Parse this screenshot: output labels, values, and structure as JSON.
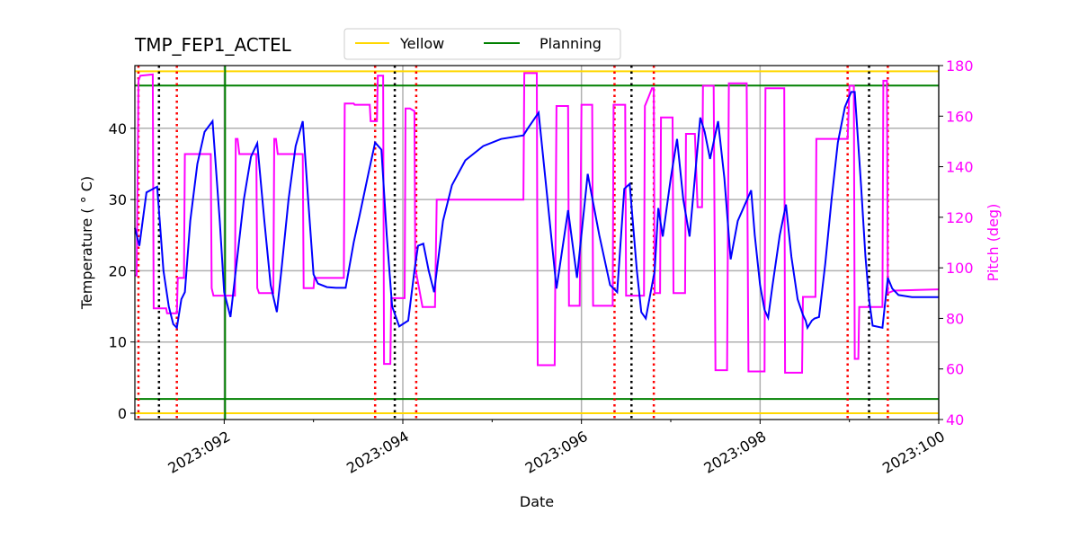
{
  "chart_data": {
    "type": "line",
    "title": "TMP_FEP1_ACTEL",
    "xlabel": "Date",
    "ylabel": "Temperature ($^\\circ$C)",
    "ylabel_display": "Temperature ($^\\circ$C)",
    "ylabel_text": "Temperature ( ° C)",
    "y2label": "Pitch (deg)",
    "xlim": [
      91.0,
      100.0
    ],
    "ylim": [
      -1,
      49
    ],
    "y2lim": [
      40,
      180
    ],
    "grid": true,
    "legend_position": "upper center (above axes)",
    "x_ticks": [
      {
        "day": 92,
        "label": "2023:092"
      },
      {
        "day": 94,
        "label": "2023:094"
      },
      {
        "day": 96,
        "label": "2023:096"
      },
      {
        "day": 98,
        "label": "2023:098"
      },
      {
        "day": 100,
        "label": "2023:100"
      }
    ],
    "y_ticks": [
      0,
      10,
      20,
      30,
      40
    ],
    "y2_ticks": [
      40,
      60,
      80,
      100,
      120,
      140,
      160,
      180
    ],
    "legend": [
      {
        "name": "Yellow",
        "color": "#ffd700"
      },
      {
        "name": "Planning",
        "color": "#008000"
      }
    ],
    "limit_lines": [
      {
        "name": "Yellow",
        "values": [
          0.0,
          48.0
        ],
        "color": "#ffd700"
      },
      {
        "name": "Planning",
        "values": [
          2.0,
          46.0
        ],
        "color": "#008000"
      }
    ],
    "vertical_lines": {
      "red_dotted": [
        91.04,
        91.47,
        93.69,
        94.15,
        96.37,
        96.81,
        98.98,
        99.43
      ],
      "black_dotted": [
        91.27,
        93.91,
        96.56,
        99.22
      ],
      "green_solid": [
        92.0
      ]
    },
    "series": [
      {
        "name": "TMP_FEP1_ACTEL",
        "axis": "left",
        "color": "#0000ff",
        "points": [
          [
            91.0,
            26.0
          ],
          [
            91.05,
            23.5
          ],
          [
            91.13,
            31.0
          ],
          [
            91.25,
            31.8
          ],
          [
            91.32,
            20.0
          ],
          [
            91.38,
            15.0
          ],
          [
            91.43,
            12.5
          ],
          [
            91.47,
            12.0
          ],
          [
            91.52,
            16.0
          ],
          [
            91.56,
            17.0
          ],
          [
            91.62,
            27.0
          ],
          [
            91.7,
            35.0
          ],
          [
            91.78,
            39.5
          ],
          [
            91.87,
            41.0
          ],
          [
            91.95,
            27.0
          ],
          [
            92.0,
            17.0
          ],
          [
            92.07,
            13.5
          ],
          [
            92.13,
            20.0
          ],
          [
            92.22,
            30.0
          ],
          [
            92.3,
            36.0
          ],
          [
            92.37,
            37.9
          ],
          [
            92.45,
            27.0
          ],
          [
            92.52,
            18.0
          ],
          [
            92.59,
            14.2
          ],
          [
            92.64,
            20.0
          ],
          [
            92.72,
            30.0
          ],
          [
            92.8,
            37.5
          ],
          [
            92.88,
            41.0
          ],
          [
            92.94,
            30.0
          ],
          [
            93.0,
            19.5
          ],
          [
            93.05,
            18.2
          ],
          [
            93.15,
            17.7
          ],
          [
            93.25,
            17.6
          ],
          [
            93.36,
            17.6
          ],
          [
            93.45,
            24.0
          ],
          [
            93.52,
            28.0
          ],
          [
            93.62,
            34.0
          ],
          [
            93.69,
            38.0
          ],
          [
            93.76,
            37.0
          ],
          [
            93.82,
            25.0
          ],
          [
            93.88,
            15.0
          ],
          [
            93.96,
            12.2
          ],
          [
            94.06,
            13.0
          ],
          [
            94.13,
            20.0
          ],
          [
            94.17,
            23.5
          ],
          [
            94.23,
            23.8
          ],
          [
            94.29,
            20.0
          ],
          [
            94.35,
            17.0
          ],
          [
            94.45,
            27.0
          ],
          [
            94.55,
            32.0
          ],
          [
            94.7,
            35.5
          ],
          [
            94.9,
            37.5
          ],
          [
            95.1,
            38.5
          ],
          [
            95.35,
            39.0
          ],
          [
            95.4,
            40.0
          ],
          [
            95.52,
            42.2
          ],
          [
            95.62,
            30.0
          ],
          [
            95.72,
            17.5
          ],
          [
            95.85,
            28.5
          ],
          [
            95.95,
            19.0
          ],
          [
            96.07,
            33.6
          ],
          [
            96.2,
            25.0
          ],
          [
            96.32,
            18.0
          ],
          [
            96.4,
            17.0
          ],
          [
            96.48,
            31.5
          ],
          [
            96.54,
            32.2
          ],
          [
            96.62,
            20.0
          ],
          [
            96.67,
            14.2
          ],
          [
            96.72,
            13.3
          ],
          [
            96.82,
            20.0
          ],
          [
            96.86,
            28.8
          ],
          [
            96.91,
            24.8
          ],
          [
            97.0,
            33.0
          ],
          [
            97.07,
            38.5
          ],
          [
            97.14,
            30.0
          ],
          [
            97.21,
            24.8
          ],
          [
            97.33,
            41.5
          ],
          [
            97.38,
            39.5
          ],
          [
            97.44,
            35.7
          ],
          [
            97.53,
            41.0
          ],
          [
            97.6,
            33.0
          ],
          [
            97.67,
            21.6
          ],
          [
            97.75,
            27.0
          ],
          [
            97.9,
            31.3
          ],
          [
            97.94,
            25.0
          ],
          [
            98.0,
            18.0
          ],
          [
            98.05,
            14.5
          ],
          [
            98.09,
            13.4
          ],
          [
            98.14,
            18.0
          ],
          [
            98.22,
            25.0
          ],
          [
            98.29,
            29.3
          ],
          [
            98.35,
            22.0
          ],
          [
            98.42,
            16.0
          ],
          [
            98.48,
            13.8
          ],
          [
            98.51,
            13.0
          ],
          [
            98.53,
            12.0
          ],
          [
            98.58,
            13.0
          ],
          [
            98.61,
            13.3
          ],
          [
            98.66,
            13.5
          ],
          [
            98.73,
            21.0
          ],
          [
            98.8,
            30.0
          ],
          [
            98.87,
            38.0
          ],
          [
            98.95,
            43.0
          ],
          [
            99.02,
            45.1
          ],
          [
            99.06,
            45.1
          ],
          [
            99.13,
            32.0
          ],
          [
            99.18,
            22.0
          ],
          [
            99.22,
            16.0
          ],
          [
            99.26,
            12.3
          ],
          [
            99.37,
            12.0
          ],
          [
            99.43,
            19.0
          ],
          [
            99.48,
            17.5
          ],
          [
            99.55,
            16.6
          ],
          [
            99.7,
            16.3
          ],
          [
            100.0,
            16.3
          ]
        ]
      },
      {
        "name": "Pitch",
        "axis": "right",
        "color": "#ff00ff",
        "points": [
          [
            91.0,
            97.0
          ],
          [
            91.02,
            97.0
          ],
          [
            91.04,
            174.0
          ],
          [
            91.06,
            176.0
          ],
          [
            91.2,
            176.5
          ],
          [
            91.21,
            84.0
          ],
          [
            91.35,
            84.0
          ],
          [
            91.36,
            82.0
          ],
          [
            91.47,
            82.0
          ],
          [
            91.48,
            96.0
          ],
          [
            91.55,
            96.0
          ],
          [
            91.56,
            145.0
          ],
          [
            91.85,
            145.0
          ],
          [
            91.86,
            92.0
          ],
          [
            91.88,
            89.0
          ],
          [
            92.0,
            89.0
          ],
          [
            92.12,
            89.0
          ],
          [
            92.13,
            151.0
          ],
          [
            92.15,
            151.0
          ],
          [
            92.17,
            145.0
          ],
          [
            92.36,
            145.0
          ],
          [
            92.37,
            92.0
          ],
          [
            92.39,
            90.0
          ],
          [
            92.55,
            90.0
          ],
          [
            92.56,
            151.0
          ],
          [
            92.58,
            151.0
          ],
          [
            92.6,
            145.0
          ],
          [
            92.88,
            145.0
          ],
          [
            92.89,
            92.0
          ],
          [
            93.0,
            92.0
          ],
          [
            93.01,
            96.0
          ],
          [
            93.34,
            96.0
          ],
          [
            93.35,
            165.0
          ],
          [
            93.45,
            165.0
          ],
          [
            93.46,
            164.5
          ],
          [
            93.63,
            164.5
          ],
          [
            93.64,
            158.0
          ],
          [
            93.71,
            158.0
          ],
          [
            93.72,
            176.0
          ],
          [
            93.78,
            176.0
          ],
          [
            93.79,
            62.0
          ],
          [
            93.86,
            62.0
          ],
          [
            93.87,
            88.0
          ],
          [
            94.02,
            88.0
          ],
          [
            94.03,
            163.0
          ],
          [
            94.08,
            163.0
          ],
          [
            94.13,
            162.0
          ],
          [
            94.14,
            98.0
          ],
          [
            94.15,
            98.0
          ],
          [
            94.22,
            84.5
          ],
          [
            94.36,
            84.5
          ],
          [
            94.38,
            127.0
          ],
          [
            95.35,
            127.0
          ],
          [
            95.36,
            177.0
          ],
          [
            95.5,
            177.0
          ],
          [
            95.51,
            61.5
          ],
          [
            95.7,
            61.5
          ],
          [
            95.72,
            164.0
          ],
          [
            95.85,
            164.0
          ],
          [
            95.86,
            85.0
          ],
          [
            95.98,
            85.0
          ],
          [
            96.0,
            164.5
          ],
          [
            96.12,
            164.5
          ],
          [
            96.13,
            85.0
          ],
          [
            96.35,
            85.0
          ],
          [
            96.36,
            164.5
          ],
          [
            96.49,
            164.5
          ],
          [
            96.5,
            89.0
          ],
          [
            96.7,
            89.0
          ],
          [
            96.71,
            164.0
          ],
          [
            96.75,
            167.5
          ],
          [
            96.79,
            171.0
          ],
          [
            96.81,
            171.0
          ],
          [
            96.82,
            90.0
          ],
          [
            96.88,
            90.0
          ],
          [
            96.89,
            159.5
          ],
          [
            97.02,
            159.5
          ],
          [
            97.03,
            90.0
          ],
          [
            97.16,
            90.0
          ],
          [
            97.17,
            153.0
          ],
          [
            97.27,
            153.0
          ],
          [
            97.3,
            124.0
          ],
          [
            97.35,
            124.0
          ],
          [
            97.36,
            172.0
          ],
          [
            97.48,
            172.0
          ],
          [
            97.5,
            59.5
          ],
          [
            97.63,
            59.5
          ],
          [
            97.65,
            173.0
          ],
          [
            97.85,
            173.0
          ],
          [
            97.87,
            59.0
          ],
          [
            98.05,
            59.0
          ],
          [
            98.06,
            171.0
          ],
          [
            98.27,
            171.0
          ],
          [
            98.28,
            58.5
          ],
          [
            98.47,
            58.5
          ],
          [
            98.48,
            88.5
          ],
          [
            98.62,
            88.5
          ],
          [
            98.63,
            151.0
          ],
          [
            98.98,
            151.0
          ],
          [
            99.0,
            172.0
          ],
          [
            99.05,
            172.0
          ],
          [
            99.06,
            64.0
          ],
          [
            99.1,
            64.0
          ],
          [
            99.11,
            84.5
          ],
          [
            99.37,
            84.5
          ],
          [
            99.38,
            174.0
          ],
          [
            99.42,
            174.0
          ],
          [
            99.43,
            90.0
          ],
          [
            99.5,
            91.0
          ],
          [
            100.0,
            91.5
          ]
        ]
      }
    ]
  }
}
